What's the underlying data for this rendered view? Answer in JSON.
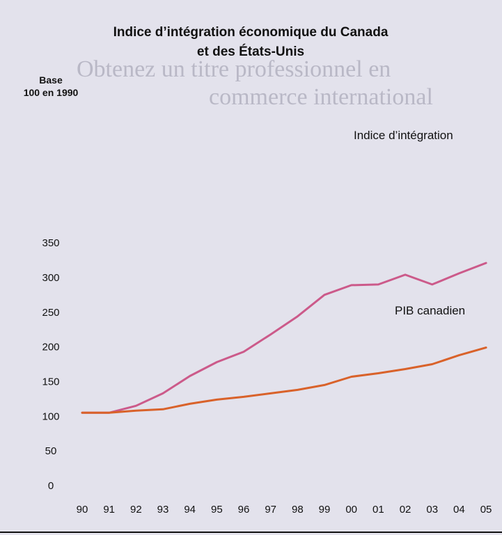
{
  "colors": {
    "background": "#e3e2ec",
    "integration_line": "#cc5a8a",
    "gdp_line": "#d9622a"
  },
  "chart_data": {
    "type": "line",
    "title_line1": "Indice d’intégration économique du Canada",
    "title_line2": "et des États-Unis",
    "ylabel_line1": "Base",
    "ylabel_line2": "100 en 1990",
    "xlabel": "",
    "ylim": [
      0,
      350
    ],
    "yticks": [
      0,
      50,
      100,
      150,
      200,
      250,
      300,
      350
    ],
    "categories": [
      "90",
      "91",
      "92",
      "93",
      "94",
      "95",
      "96",
      "97",
      "98",
      "99",
      "00",
      "01",
      "02",
      "03",
      "04",
      "05"
    ],
    "grid": false,
    "series": [
      {
        "name": "Indice d’intégration",
        "color": "#cc5a8a",
        "values": [
          105,
          105,
          115,
          133,
          158,
          178,
          193,
          218,
          244,
          275,
          289,
          290,
          304,
          290,
          306,
          321
        ]
      },
      {
        "name": "PIB canadien",
        "color": "#d9622a",
        "values": [
          105,
          105,
          108,
          110,
          118,
          124,
          128,
          133,
          138,
          145,
          157,
          162,
          168,
          175,
          188,
          199
        ]
      }
    ]
  }
}
